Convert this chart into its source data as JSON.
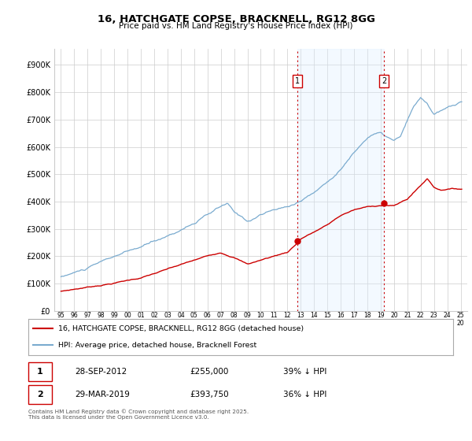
{
  "title": "16, HATCHGATE COPSE, BRACKNELL, RG12 8GG",
  "subtitle": "Price paid vs. HM Land Registry's House Price Index (HPI)",
  "yticks": [
    0,
    100000,
    200000,
    300000,
    400000,
    500000,
    600000,
    700000,
    800000,
    900000
  ],
  "ytick_labels": [
    "£0",
    "£100K",
    "£200K",
    "£300K",
    "£400K",
    "£500K",
    "£600K",
    "£700K",
    "£800K",
    "£900K"
  ],
  "ylim": [
    0,
    960000
  ],
  "xlim_start": 1994.5,
  "xlim_end": 2025.5,
  "sale1_date": 2012.75,
  "sale1_price": 255000,
  "sale2_date": 2019.25,
  "sale2_price": 393750,
  "sale_color": "#cc0000",
  "hpi_color": "#7aabcf",
  "vline_color": "#cc0000",
  "background_color": "#ffffff",
  "grid_color": "#cccccc",
  "span_color": "#ddeeff",
  "legend_label_red": "16, HATCHGATE COPSE, BRACKNELL, RG12 8GG (detached house)",
  "legend_label_blue": "HPI: Average price, detached house, Bracknell Forest",
  "table_row1": [
    "1",
    "28-SEP-2012",
    "£255,000",
    "39% ↓ HPI"
  ],
  "table_row2": [
    "2",
    "29-MAR-2019",
    "£393,750",
    "36% ↓ HPI"
  ],
  "footer": "Contains HM Land Registry data © Crown copyright and database right 2025.\nThis data is licensed under the Open Government Licence v3.0.",
  "xtick_years": [
    1995,
    1996,
    1997,
    1998,
    1999,
    2000,
    2001,
    2002,
    2003,
    2004,
    2005,
    2006,
    2007,
    2008,
    2009,
    2010,
    2011,
    2012,
    2013,
    2014,
    2015,
    2016,
    2017,
    2018,
    2019,
    2020,
    2021,
    2022,
    2023,
    2024,
    2025
  ],
  "marker1_y": 840000,
  "marker2_y": 840000,
  "hpi_seed": 10,
  "pp_seed": 7
}
